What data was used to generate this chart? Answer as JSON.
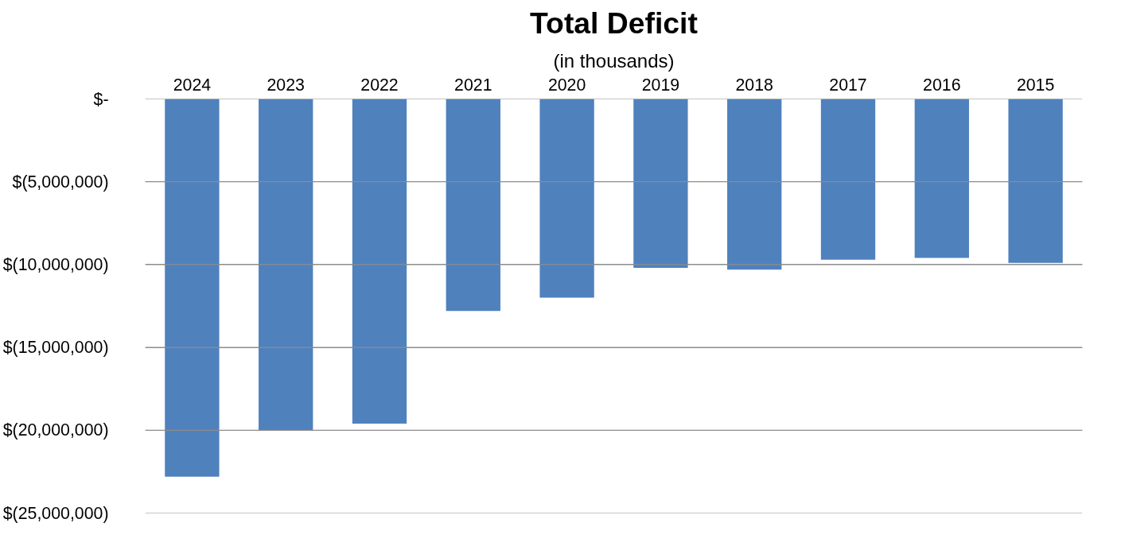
{
  "chart_data": {
    "type": "bar",
    "title": "Total Deficit",
    "subtitle": "(in thousands)",
    "categories": [
      "2024",
      "2023",
      "2022",
      "2021",
      "2020",
      "2019",
      "2018",
      "2017",
      "2016",
      "2015"
    ],
    "values": [
      -22800000,
      -20000000,
      -19600000,
      -12800000,
      -12000000,
      -10200000,
      -10300000,
      -9700000,
      -9600000,
      -9900000
    ],
    "color": "#4f81bd",
    "ylim": [
      -25000000,
      0
    ],
    "yticks": [
      {
        "value": 0,
        "label": "$-"
      },
      {
        "value": -5000000,
        "label": "$(5,000,000)"
      },
      {
        "value": -10000000,
        "label": "$(10,000,000)"
      },
      {
        "value": -15000000,
        "label": "$(15,000,000)"
      },
      {
        "value": -20000000,
        "label": "$(20,000,000)"
      },
      {
        "value": -25000000,
        "label": "$(25,000,000)"
      }
    ],
    "grid": "y"
  }
}
